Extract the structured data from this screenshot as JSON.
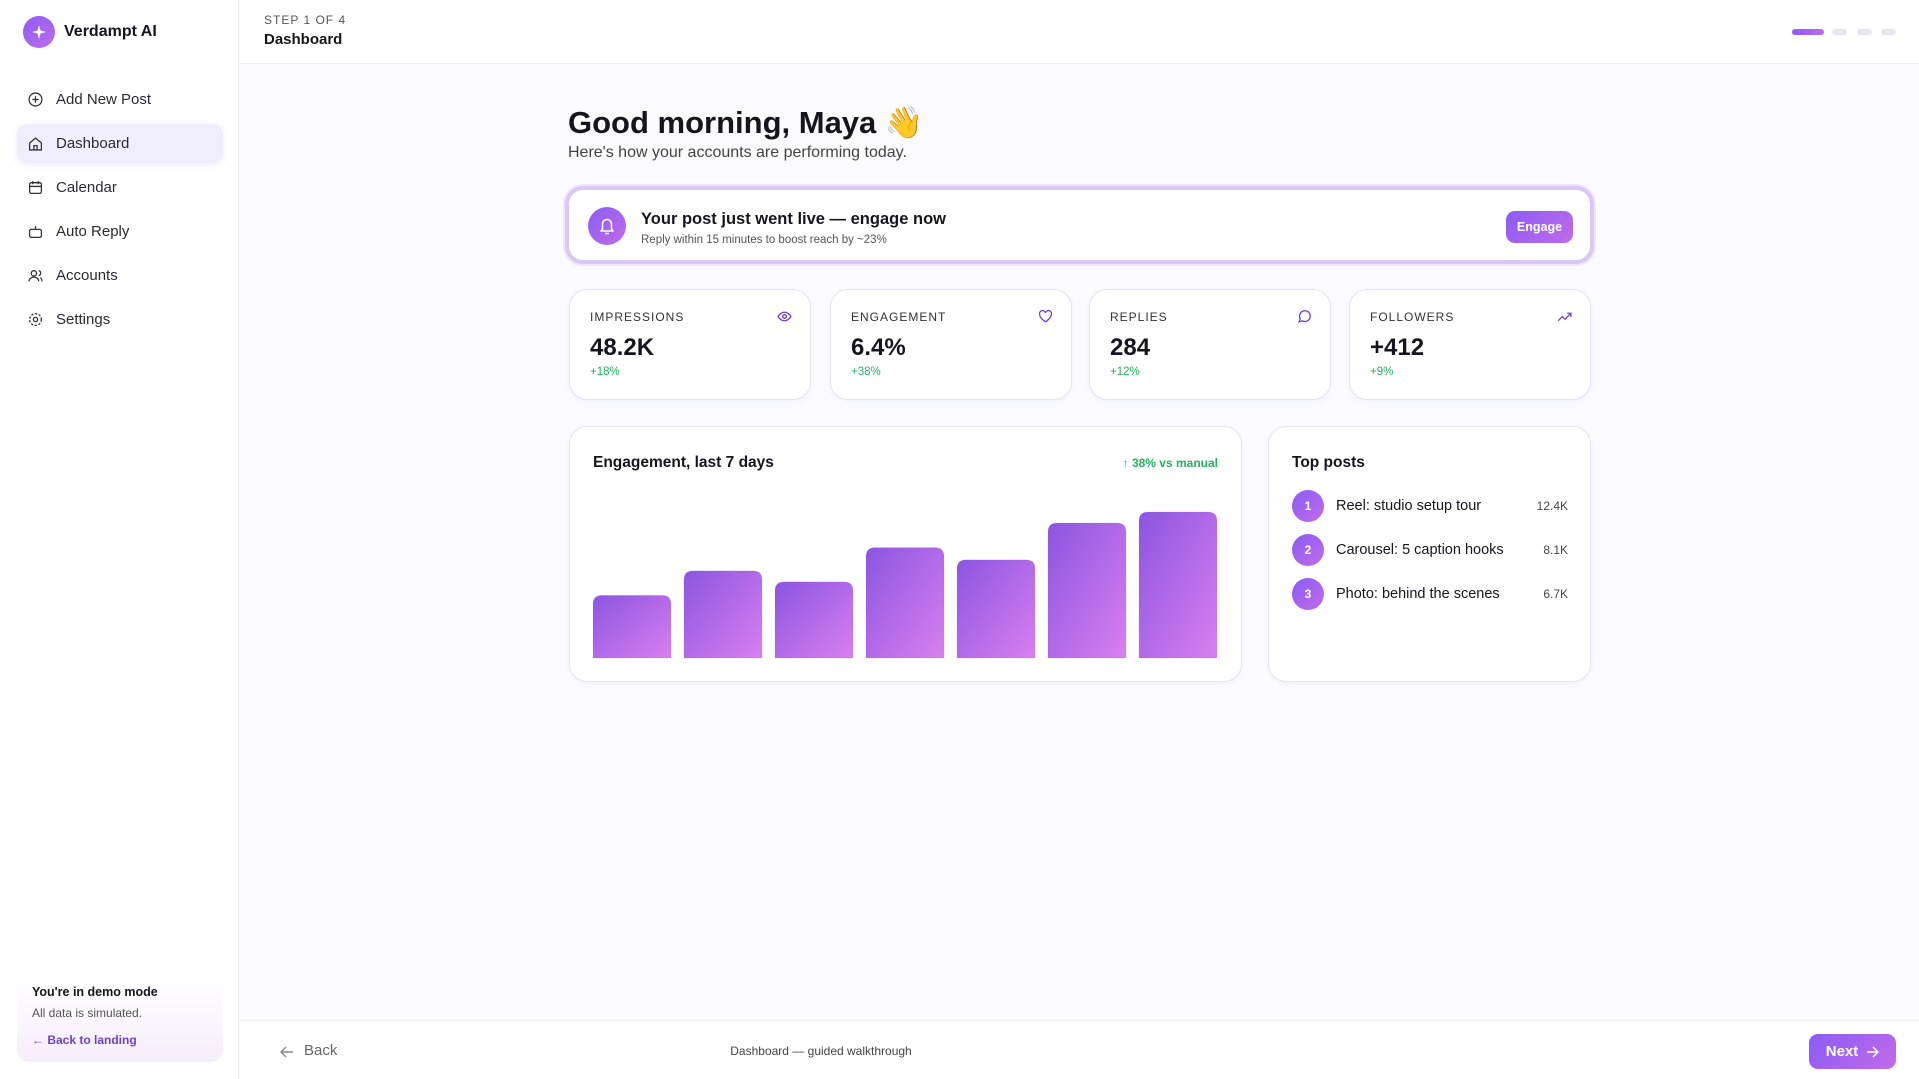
{
  "sidebar": {
    "brand": "Verdampt AI",
    "nav": [
      "Add New Post",
      "Dashboard",
      "Calendar",
      "Auto Reply",
      "Accounts",
      "Settings"
    ],
    "demo": {
      "title": "You're in demo mode",
      "text": "All data is simulated.",
      "link": "← Back to landing"
    }
  },
  "header": {
    "step": "STEP 1 OF 4",
    "title": "Dashboard"
  },
  "greeting": {
    "title": "Good morning, Maya 👋",
    "subtitle": "Here's how your accounts are performing today."
  },
  "banner": {
    "title": "Your post just went live — engage now",
    "text": "Reply within 15 minutes to boost reach by ~23%",
    "button": "Engage"
  },
  "stats": [
    {
      "label": "IMPRESSIONS",
      "value": "48.2K",
      "change": "+18%"
    },
    {
      "label": "ENGAGEMENT",
      "value": "6.4%",
      "change": "+38%"
    },
    {
      "label": "REPLIES",
      "value": "284",
      "change": "+12%"
    },
    {
      "label": "FOLLOWERS",
      "value": "+412",
      "change": "+9%"
    }
  ],
  "chart_data": {
    "type": "bar",
    "title": "Engagement, last 7 days",
    "badge": "↑ 38% vs manual",
    "values": [
      51,
      71,
      62,
      90,
      80,
      110,
      119
    ],
    "color": "#9b5de5"
  },
  "top_posts": {
    "title": "Top posts",
    "items": [
      {
        "rank": "1",
        "title": "Reel: studio setup tour",
        "value": "12.4K"
      },
      {
        "rank": "2",
        "title": "Carousel: 5 caption hooks",
        "value": "8.1K"
      },
      {
        "rank": "3",
        "title": "Photo: behind the scenes",
        "value": "6.7K"
      }
    ]
  },
  "footer": {
    "back": "Back",
    "center": "Dashboard — guided walkthrough",
    "next": "Next"
  }
}
